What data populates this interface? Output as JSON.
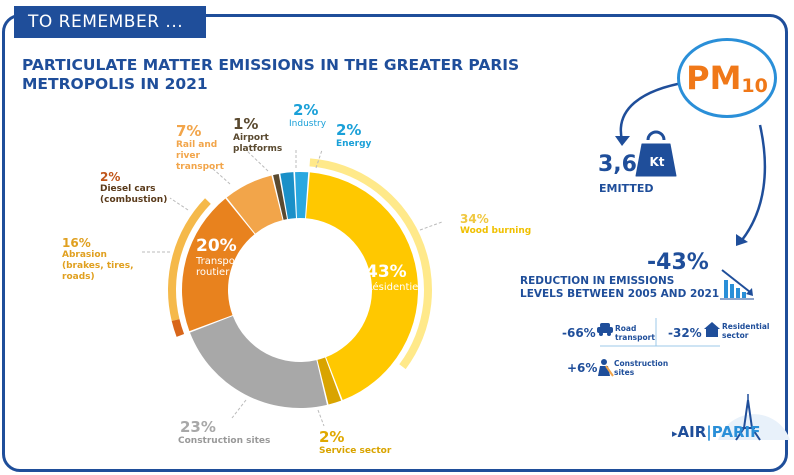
{
  "banner": {
    "label": "TO REMEMBER ..."
  },
  "title": {
    "line1": "PARTICULATE MATTER EMISSIONS IN THE GREATER PARIS",
    "line2": "METROPOLIS IN 2021"
  },
  "chart_data": {
    "type": "pie",
    "categories": [
      "Industry",
      "Energy",
      "Résidentiel",
      "Service sector",
      "Construction sites",
      "Transport routier",
      "Rail and river transport",
      "Airport platforms"
    ],
    "values": [
      2,
      2,
      43,
      2,
      23,
      20,
      7,
      1
    ],
    "colors": [
      "#1a90c8",
      "#2aa8e0",
      "#ffc800",
      "#d9a400",
      "#a8a8a8",
      "#e8821e",
      "#f2a54a",
      "#5a4a30"
    ],
    "outer_bands": [
      {
        "parent": "Résidentiel",
        "label": "Wood burning",
        "value": 34,
        "color": "#ffe98a"
      },
      {
        "parent": "Transport routier",
        "label": "Abrasion (brakes, tires, roads)",
        "value": 16,
        "color": "#f5b94a"
      },
      {
        "parent": "Transport routier",
        "label": "Diesel cars (combustion)",
        "value": 2,
        "color": "#d8661a"
      }
    ],
    "labels": {
      "industry": {
        "pct": "2%",
        "name": "Industry"
      },
      "energy": {
        "pct": "2%",
        "name": "Energy"
      },
      "residential": {
        "pct": "43%",
        "name": "Résidentiel"
      },
      "wood": {
        "pct": "34%",
        "name": "Wood burning"
      },
      "service": {
        "pct": "2%",
        "name": "Service sector"
      },
      "construction": {
        "pct": "23%",
        "name": "Construction sites"
      },
      "transport": {
        "pct": "20%",
        "name1": "Transport",
        "name2": "routier"
      },
      "abrasion": {
        "pct": "16%",
        "name1": "Abrasion",
        "name2": "(brakes, tires,",
        "name3": "roads)"
      },
      "diesel": {
        "pct": "2%",
        "name1": "Diesel cars",
        "name2": "(combustion)"
      },
      "rail": {
        "pct": "7%",
        "name1": "Rail and",
        "name2": "river",
        "name3": "transport"
      },
      "airport": {
        "pct": "1%",
        "name1": "Airport",
        "name2": "platforms"
      }
    }
  },
  "side": {
    "pm_text": "PM",
    "pm_sub": "10",
    "emitted_value": "3,6",
    "emitted_unit": "Kt",
    "emitted_label": "EMITTED",
    "reduction_value": "-43%",
    "reduction_line1": "REDUCTION IN EMISSIONS",
    "reduction_line2": "LEVELS BETWEEN 2005 AND 2021",
    "road": {
      "value": "-66%",
      "line1": "Road",
      "line2": "transport"
    },
    "residential": {
      "value": "-32%",
      "line1": "Residential",
      "line2": "sector"
    },
    "construction": {
      "value": "+6%",
      "line1": "Construction",
      "line2": "sites"
    },
    "colors": {
      "accent": "#1f4e9a",
      "blue": "#2a8fd8",
      "orange": "#f07818"
    }
  },
  "logo": {
    "part1": "AIR",
    "part2": "PARIF"
  }
}
